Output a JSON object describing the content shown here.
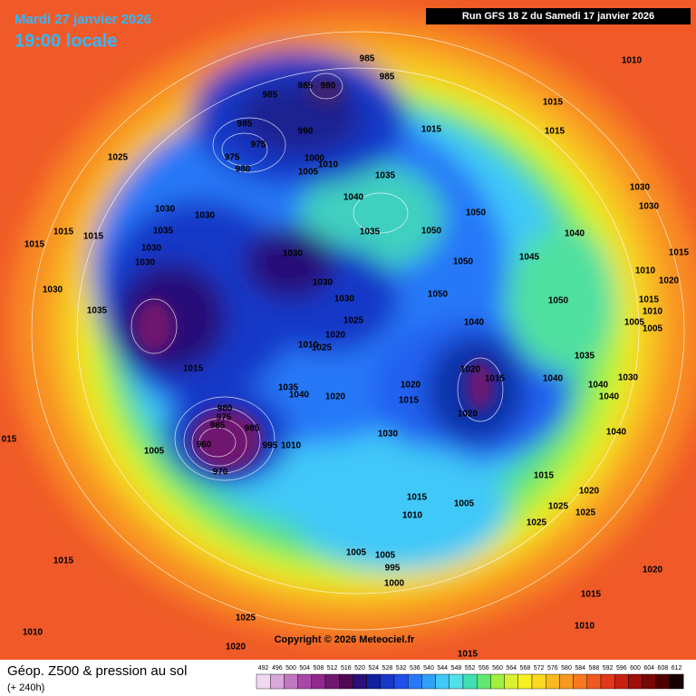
{
  "header": {
    "date": "Mardi 27 janvier 2026",
    "time": "19:00 locale",
    "run": "Run GFS 18 Z du Samedi 17 janvier 2026"
  },
  "map": {
    "copyright": "Copyright © 2026 Meteociel.fr",
    "isobar_labels": [
      "985",
      "985",
      "985",
      "985",
      "980",
      "985",
      "975",
      "975",
      "980",
      "990",
      "1000",
      "1010",
      "1005",
      "1015",
      "1015",
      "1015",
      "1010",
      "1025",
      "1035",
      "1040",
      "1030",
      "1030",
      "1035",
      "1015",
      "1015",
      "1015",
      "1030",
      "1030",
      "1030",
      "1030",
      "1030",
      "1030",
      "1050",
      "1035",
      "1050",
      "1050",
      "1045",
      "1040",
      "1030",
      "1030",
      "1015",
      "1010",
      "1020",
      "1015",
      "1010",
      "1005",
      "1005",
      "1050",
      "1050",
      "1040",
      "1025",
      "1020",
      "1025",
      "1010",
      "1035",
      "1015",
      "1035",
      "1040",
      "1020",
      "1020",
      "1015",
      "1020",
      "1020",
      "1015",
      "1035",
      "1040",
      "1030",
      "1040",
      "1040",
      "1040",
      "980",
      "975",
      "985",
      "985",
      "960",
      "970",
      "1005",
      "995",
      "1010",
      "1030",
      "1015",
      "1020",
      "1025",
      "1025",
      "1025",
      "1005",
      "1015",
      "1010",
      "1005",
      "1005",
      "995",
      "1000",
      "1015",
      "1020",
      "1015",
      "1025",
      "1010",
      "1010",
      "1020",
      "1015",
      "015"
    ]
  },
  "legend": {
    "title": "Géop. Z500 & pression au sol",
    "subtitle": "(+ 240h)",
    "scale": {
      "values": [
        492,
        496,
        500,
        504,
        508,
        512,
        516,
        520,
        524,
        528,
        532,
        536,
        540,
        544,
        548,
        552,
        556,
        560,
        564,
        568,
        572,
        576,
        580,
        584,
        588,
        592,
        596,
        600,
        604,
        608,
        612
      ],
      "colors": [
        "#f0d8f0",
        "#d8a8d8",
        "#c078c0",
        "#a848a8",
        "#902890",
        "#701870",
        "#500850",
        "#281078",
        "#1020a0",
        "#1838c8",
        "#2050e8",
        "#2878f8",
        "#30a0f8",
        "#40c8f8",
        "#50e0e8",
        "#40e0b0",
        "#60e870",
        "#a0f040",
        "#d8f030",
        "#f8f020",
        "#f8d820",
        "#f8b820",
        "#f89820",
        "#f87820",
        "#f05820",
        "#e03818",
        "#c82010",
        "#a01008",
        "#780808",
        "#500000",
        "#180000"
      ]
    }
  }
}
